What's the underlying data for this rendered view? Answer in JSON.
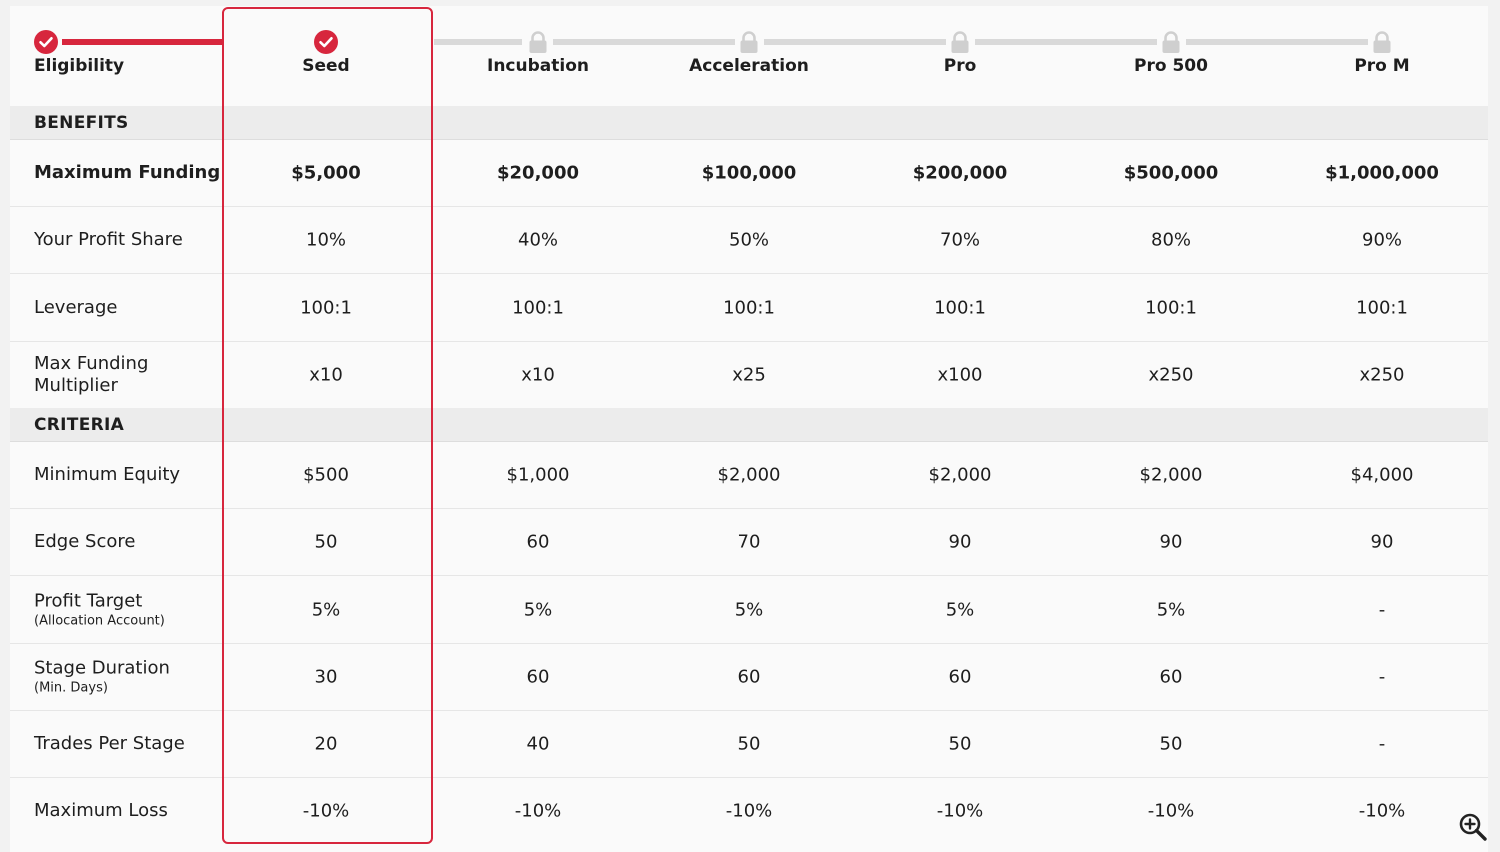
{
  "stages": [
    {
      "label": "Eligibility",
      "status": "complete"
    },
    {
      "label": "Seed",
      "status": "current"
    },
    {
      "label": "Incubation",
      "status": "locked"
    },
    {
      "label": "Acceleration",
      "status": "locked"
    },
    {
      "label": "Pro",
      "status": "locked"
    },
    {
      "label": "Pro 500",
      "status": "locked"
    },
    {
      "label": "Pro M",
      "status": "locked"
    }
  ],
  "colors": {
    "accent": "#d7263d",
    "track_gray": "#d9d9d9",
    "lock_gray": "#cfcfcf"
  },
  "sections": {
    "benefits": "BENEFITS",
    "criteria": "CRITERIA"
  },
  "benefits_rows": [
    {
      "label": "Maximum Funding",
      "sub": "",
      "values": [
        "$5,000",
        "$20,000",
        "$100,000",
        "$200,000",
        "$500,000",
        "$1,000,000"
      ]
    },
    {
      "label": "Your Profit Share",
      "sub": "",
      "values": [
        "10%",
        "40%",
        "50%",
        "70%",
        "80%",
        "90%"
      ]
    },
    {
      "label": "Leverage",
      "sub": "",
      "values": [
        "100:1",
        "100:1",
        "100:1",
        "100:1",
        "100:1",
        "100:1"
      ]
    },
    {
      "label": "Max Funding Multiplier",
      "sub": "",
      "values": [
        "x10",
        "x10",
        "x25",
        "x100",
        "x250",
        "x250"
      ]
    }
  ],
  "criteria_rows": [
    {
      "label": "Minimum Equity",
      "sub": "",
      "values": [
        "$500",
        "$1,000",
        "$2,000",
        "$2,000",
        "$2,000",
        "$4,000"
      ]
    },
    {
      "label": "Edge Score",
      "sub": "",
      "values": [
        "50",
        "60",
        "70",
        "90",
        "90",
        "90"
      ]
    },
    {
      "label": "Profit Target",
      "sub": "(Allocation Account)",
      "values": [
        "5%",
        "5%",
        "5%",
        "5%",
        "5%",
        "-"
      ]
    },
    {
      "label": "Stage Duration",
      "sub": "(Min. Days)",
      "values": [
        "30",
        "60",
        "60",
        "60",
        "60",
        "-"
      ]
    },
    {
      "label": "Trades Per Stage",
      "sub": "",
      "values": [
        "20",
        "40",
        "50",
        "50",
        "50",
        "-"
      ]
    },
    {
      "label": "Maximum Loss",
      "sub": "",
      "values": [
        "-10%",
        "-10%",
        "-10%",
        "-10%",
        "-10%",
        "-10%"
      ]
    }
  ],
  "icons": {
    "complete": "check-circle-icon",
    "locked": "lock-icon",
    "zoom": "zoom-in-icon"
  }
}
